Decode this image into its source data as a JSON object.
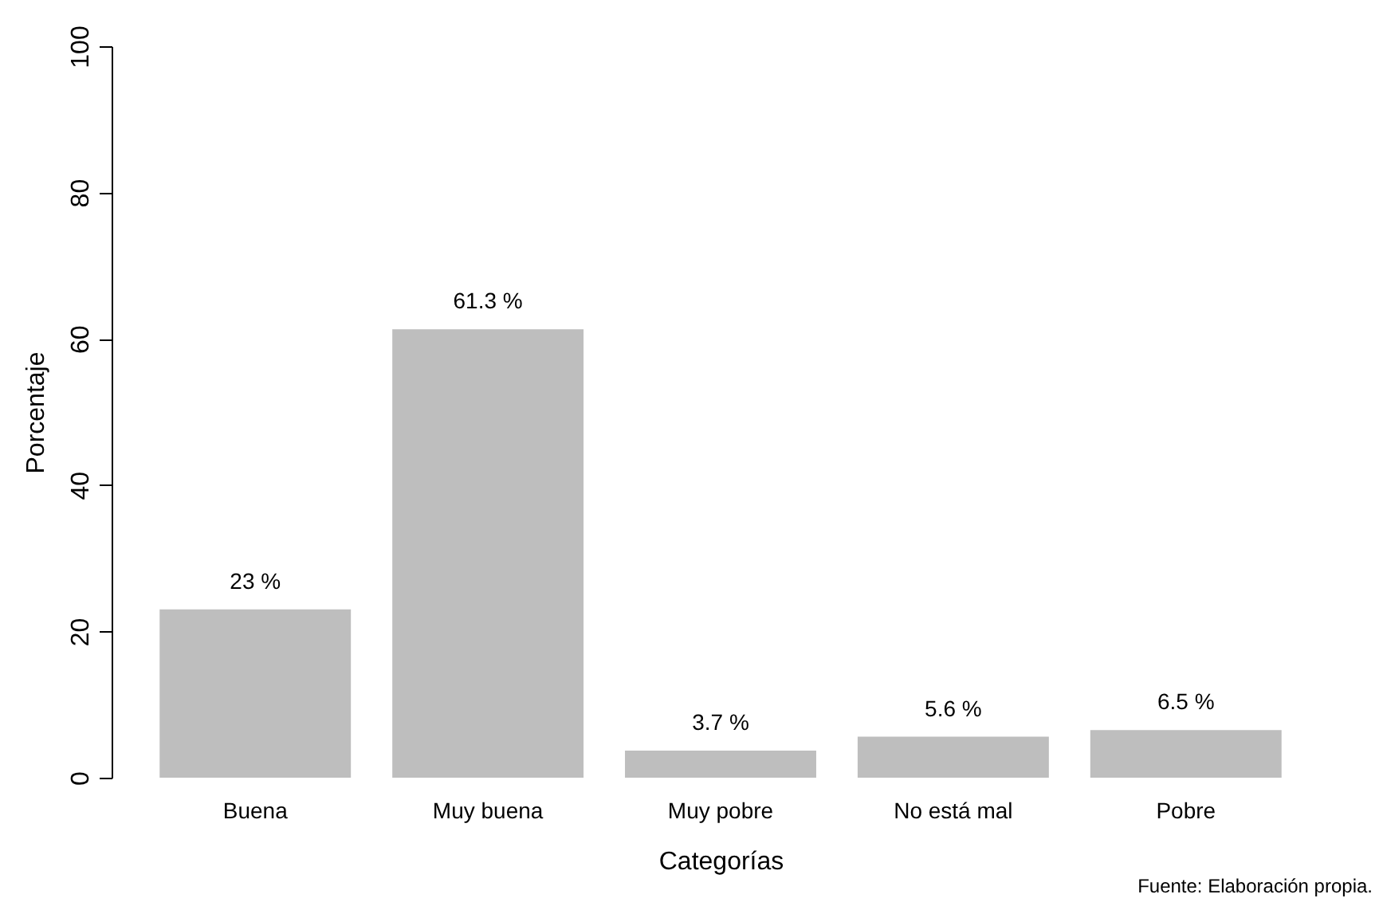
{
  "chart_data": {
    "type": "bar",
    "xlabel": "Categorías",
    "ylabel": "Porcentaje",
    "categories": [
      "Buena",
      "Muy buena",
      "Muy pobre",
      "No está mal",
      "Pobre"
    ],
    "values": [
      23,
      61.3,
      3.7,
      5.6,
      6.5
    ],
    "value_labels": [
      "23 %",
      "61.3 %",
      "3.7 %",
      "5.6 %",
      "6.5 %"
    ],
    "color": "#bebebe",
    "ylim": [
      0,
      100
    ],
    "yticks": [
      0,
      20,
      40,
      60,
      80,
      100
    ],
    "grid": false,
    "annotations": [
      "Fuente: Elaboración propia."
    ]
  }
}
